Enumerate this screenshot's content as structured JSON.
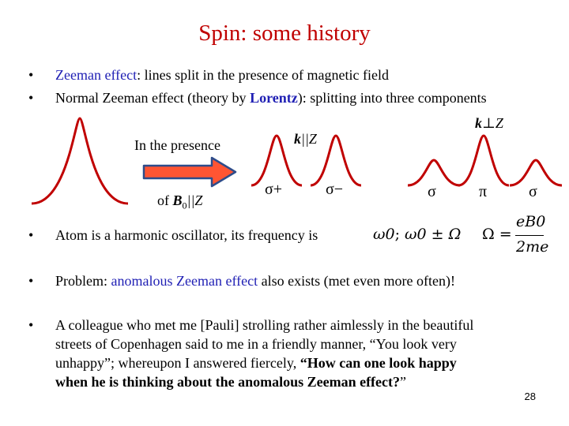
{
  "title": "Spin: some history",
  "bullets": {
    "b1": {
      "link": "Zeeman effect",
      "rest": ": lines split in the presence of magnetic field"
    },
    "b2": {
      "pre": "Normal Zeeman effect (theory by ",
      "name": "Lorentz",
      "post": "): splitting into three components"
    },
    "b3": {
      "text": "Atom is a harmonic oscillator, its frequency is"
    },
    "b4": {
      "pre": "Problem: ",
      "link": "anomalous Zeeman effect",
      "post": " also exists (met even more often)!"
    },
    "b5": {
      "line1": "A colleague who met me [Pauli] strolling rather aimlessly in the beautiful",
      "line2": "streets of Copenhagen said to me in a friendly manner, “You look very",
      "line3_plain": "unhappy”; whereupon I answered fiercely, ",
      "line3_bold": "“How can one look happy",
      "line4_bold": "when he is thinking about the anomalous Zeeman effect?",
      "line4_end": "”"
    }
  },
  "diagram": {
    "presence_label": "In the presence",
    "of_label": "of ",
    "b_symbol": "B",
    "b_sub": "0",
    "parallel_z": "||Z",
    "k_parallel": {
      "k": "k",
      "rest": "||Z"
    },
    "k_perp": {
      "k": "k",
      "rest": "⊥Z"
    },
    "sigma_plus": "σ+",
    "sigma_minus": "σ−",
    "sigma": "σ",
    "pi": "π"
  },
  "formulas": {
    "omega_zero": "ω0",
    "separator": ";",
    "omega_pm": "ω0 ± Ω",
    "omega_def_lhs": "Ω =",
    "numerator": "eB0",
    "denominator": "2me"
  },
  "colors": {
    "title": "#c00000",
    "link": "#1f1fb4",
    "peak": "#c00000",
    "arrow_fill": "#ff5533",
    "arrow_stroke": "#2e4c8a"
  },
  "page_number": "28"
}
